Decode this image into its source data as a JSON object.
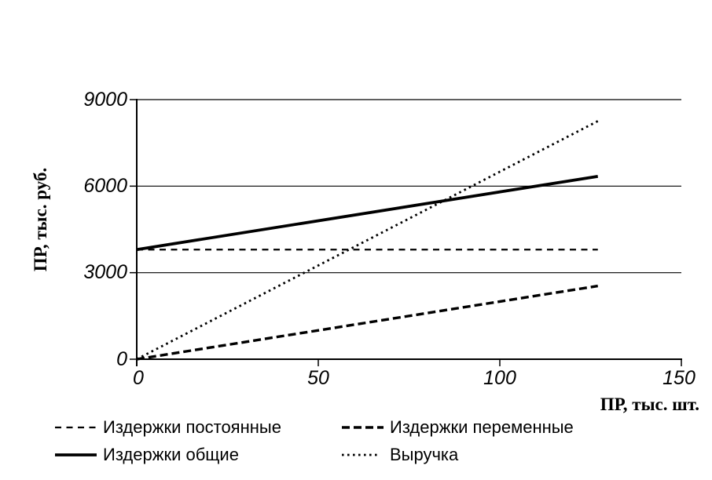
{
  "page": {
    "background": "#ffffff"
  },
  "chart_data": {
    "type": "line",
    "title": "",
    "xlabel": "ПР, тыс.  шт.",
    "ylabel": "ПР, тыс.  руб.",
    "xlim": [
      0,
      150
    ],
    "ylim": [
      0,
      9000
    ],
    "xticks": [
      0,
      50,
      100,
      150
    ],
    "yticks": [
      0,
      3000,
      6000,
      9000
    ],
    "grid": "horizontal",
    "legend_position": "bottom",
    "colors": {
      "line": "#000000",
      "grid": "#000000",
      "text": "#000000"
    },
    "series": [
      {
        "name": "Издержки постоянные",
        "style": "thin-dashed",
        "points": [
          [
            0,
            3800
          ],
          [
            127,
            3800
          ]
        ]
      },
      {
        "name": "Издержки переменные",
        "style": "thick-dashed",
        "points": [
          [
            0,
            0
          ],
          [
            127,
            2540
          ]
        ]
      },
      {
        "name": "Издержки общие",
        "style": "solid",
        "points": [
          [
            0,
            3800
          ],
          [
            127,
            6340
          ]
        ]
      },
      {
        "name": "Выручка",
        "style": "dotted",
        "points": [
          [
            0,
            0
          ],
          [
            127,
            8255
          ]
        ]
      }
    ]
  }
}
